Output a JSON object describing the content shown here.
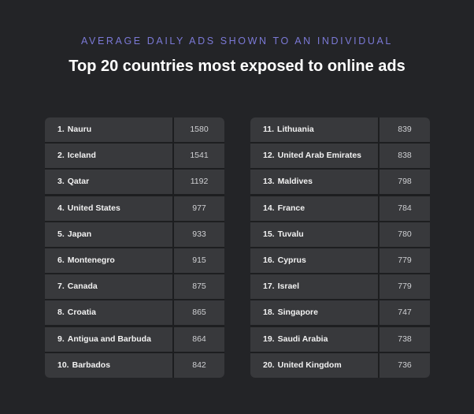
{
  "header": {
    "subtitle": "AVERAGE DAILY ADS SHOWN TO AN INDIVIDUAL",
    "title": "Top 20 countries most exposed to online ads"
  },
  "chart_data": {
    "type": "table",
    "title": "Top 20 countries most exposed to online ads",
    "subtitle": "AVERAGE DAILY ADS SHOWN TO AN INDIVIDUAL",
    "rows": [
      {
        "rank": "1.",
        "country": "Nauru",
        "value": 1580
      },
      {
        "rank": "2.",
        "country": "Iceland",
        "value": 1541
      },
      {
        "rank": "3.",
        "country": "Qatar",
        "value": 1192
      },
      {
        "rank": "4.",
        "country": "United States",
        "value": 977
      },
      {
        "rank": "5.",
        "country": "Japan",
        "value": 933
      },
      {
        "rank": "6.",
        "country": "Montenegro",
        "value": 915
      },
      {
        "rank": "7.",
        "country": "Canada",
        "value": 875
      },
      {
        "rank": "8.",
        "country": "Croatia",
        "value": 865
      },
      {
        "rank": "9.",
        "country": "Antigua and Barbuda",
        "value": 864
      },
      {
        "rank": "10.",
        "country": "Barbados",
        "value": 842
      },
      {
        "rank": "11.",
        "country": "Lithuania",
        "value": 839
      },
      {
        "rank": "12.",
        "country": "United Arab Emirates",
        "value": 838
      },
      {
        "rank": "13.",
        "country": "Maldives",
        "value": 798
      },
      {
        "rank": "14.",
        "country": "France",
        "value": 784
      },
      {
        "rank": "15.",
        "country": "Tuvalu",
        "value": 780
      },
      {
        "rank": "16.",
        "country": "Cyprus",
        "value": 779
      },
      {
        "rank": "17.",
        "country": "Israel",
        "value": 779
      },
      {
        "rank": "18.",
        "country": "Singapore",
        "value": 747
      },
      {
        "rank": "19.",
        "country": "Saudi Arabia",
        "value": 738
      },
      {
        "rank": "20.",
        "country": "United Kingdom",
        "value": 736
      }
    ]
  },
  "colors": {
    "background": "#232427",
    "subtitle": "#7b79d6",
    "title": "#ffffff",
    "cell": "#38393c",
    "cell_text": "#f2f2f2",
    "value_text": "#cfd0d3"
  }
}
